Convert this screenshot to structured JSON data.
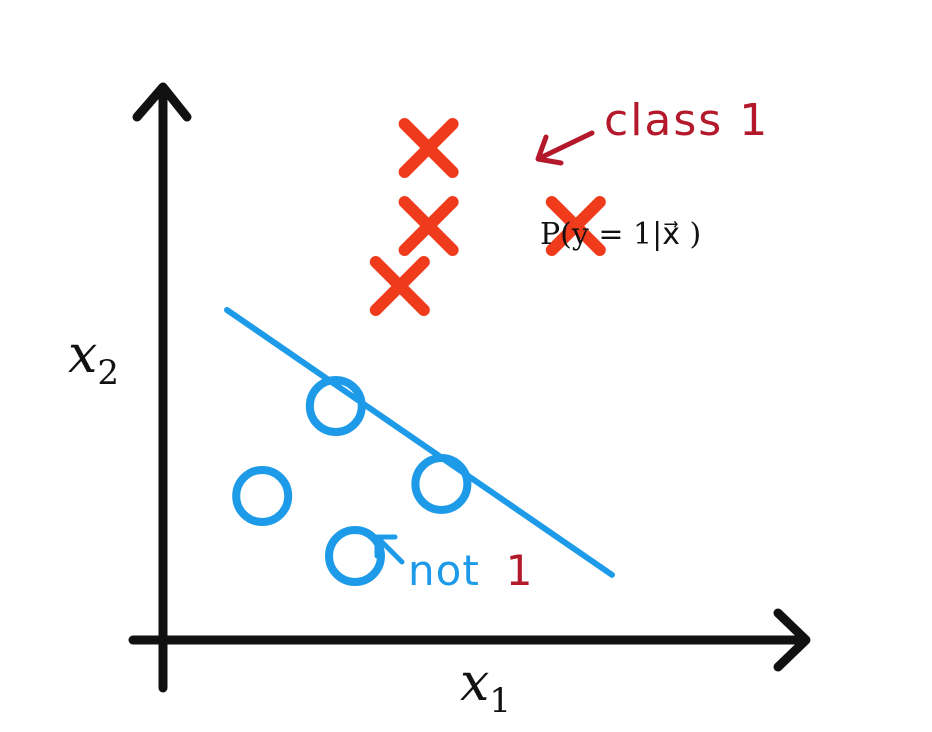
{
  "diagram": {
    "x_axis_label": {
      "base": "x",
      "subscript": "1"
    },
    "y_axis_label": {
      "base": "x",
      "subscript": "2"
    },
    "class_label": "class 1",
    "probability": "P(y = 1|x⃗ )",
    "not_label": {
      "word": "not",
      "number": "1"
    }
  },
  "colors": {
    "axis": "#111111",
    "cross": "#ef3b1c",
    "circle": "#1e9be8",
    "boundary": "#1e9be8",
    "class_annotation": "#b3182b",
    "not_word": "#1e9be8",
    "not_number": "#b3182b"
  },
  "crosses": [
    {
      "u": 0.415,
      "v": 0.82
    },
    {
      "u": 0.415,
      "v": 0.69
    },
    {
      "u": 0.645,
      "v": 0.69
    },
    {
      "u": 0.37,
      "v": 0.59
    }
  ],
  "circles": [
    {
      "u": 0.27,
      "v": 0.39
    },
    {
      "u": 0.155,
      "v": 0.24
    },
    {
      "u": 0.435,
      "v": 0.26
    },
    {
      "u": 0.3,
      "v": 0.14
    }
  ],
  "boundary": {
    "u1": 0.1,
    "v1": 0.55,
    "u2": 0.995,
    "v2": 0.13
  }
}
